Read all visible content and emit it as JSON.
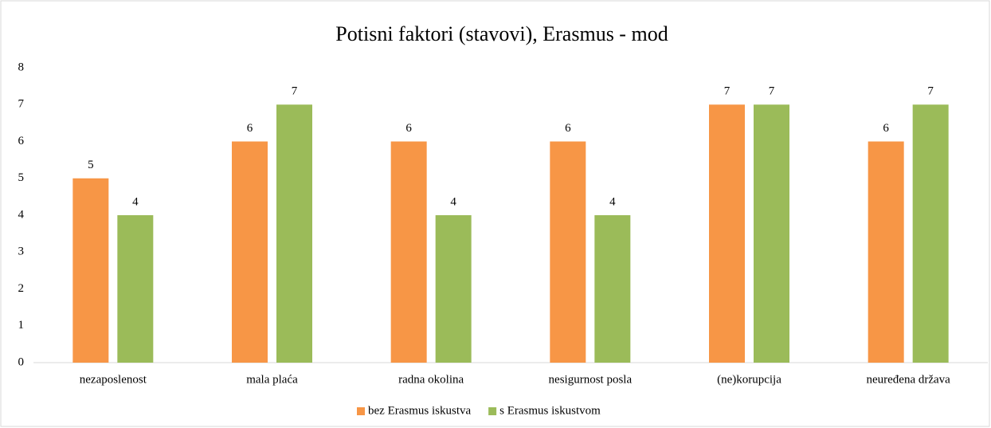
{
  "chart_data": {
    "type": "bar",
    "title": "Potisni faktori (stavovi), Erasmus - mod",
    "categories": [
      "nezaposlenost",
      "mala plaća",
      "radna okolina",
      "nesigurnost posla",
      "(ne)korupcija",
      "neuređena država"
    ],
    "series": [
      {
        "name": "bez Erasmus iskustva",
        "color": "#f79646",
        "values": [
          5,
          6,
          6,
          6,
          7,
          6
        ]
      },
      {
        "name": "s Erasmus iskustvom",
        "color": "#9bbb59",
        "values": [
          4,
          7,
          4,
          4,
          7,
          7
        ]
      }
    ],
    "ylim": [
      0,
      8
    ],
    "yticks": [
      0,
      1,
      2,
      3,
      4,
      5,
      6,
      7,
      8
    ],
    "legend": "bottom"
  }
}
